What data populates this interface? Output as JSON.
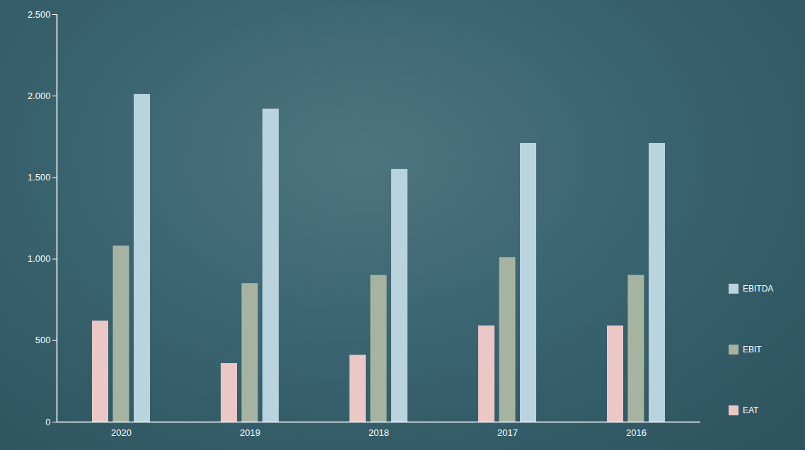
{
  "chart_data": {
    "type": "bar",
    "categories": [
      "2020",
      "2019",
      "2018",
      "2017",
      "2016"
    ],
    "series": [
      {
        "name": "EAT",
        "color": "#ebc7c5",
        "values": [
          620,
          360,
          410,
          590,
          590
        ]
      },
      {
        "name": "EBIT",
        "color": "#a7b3a1",
        "values": [
          1080,
          850,
          900,
          1010,
          900
        ]
      },
      {
        "name": "EBITDA",
        "color": "#bad4df",
        "values": [
          2010,
          1920,
          1550,
          1710,
          1710
        ]
      }
    ],
    "ylim": [
      0,
      2500
    ],
    "yticks": [
      0,
      500,
      {
        "value": 1000,
        "label": "1.000"
      },
      {
        "value": 1500,
        "label": "1.500"
      },
      {
        "value": 2000,
        "label": "2.000"
      },
      {
        "value": 2500,
        "label": "2.500"
      }
    ],
    "legend": "right",
    "grid": false
  }
}
